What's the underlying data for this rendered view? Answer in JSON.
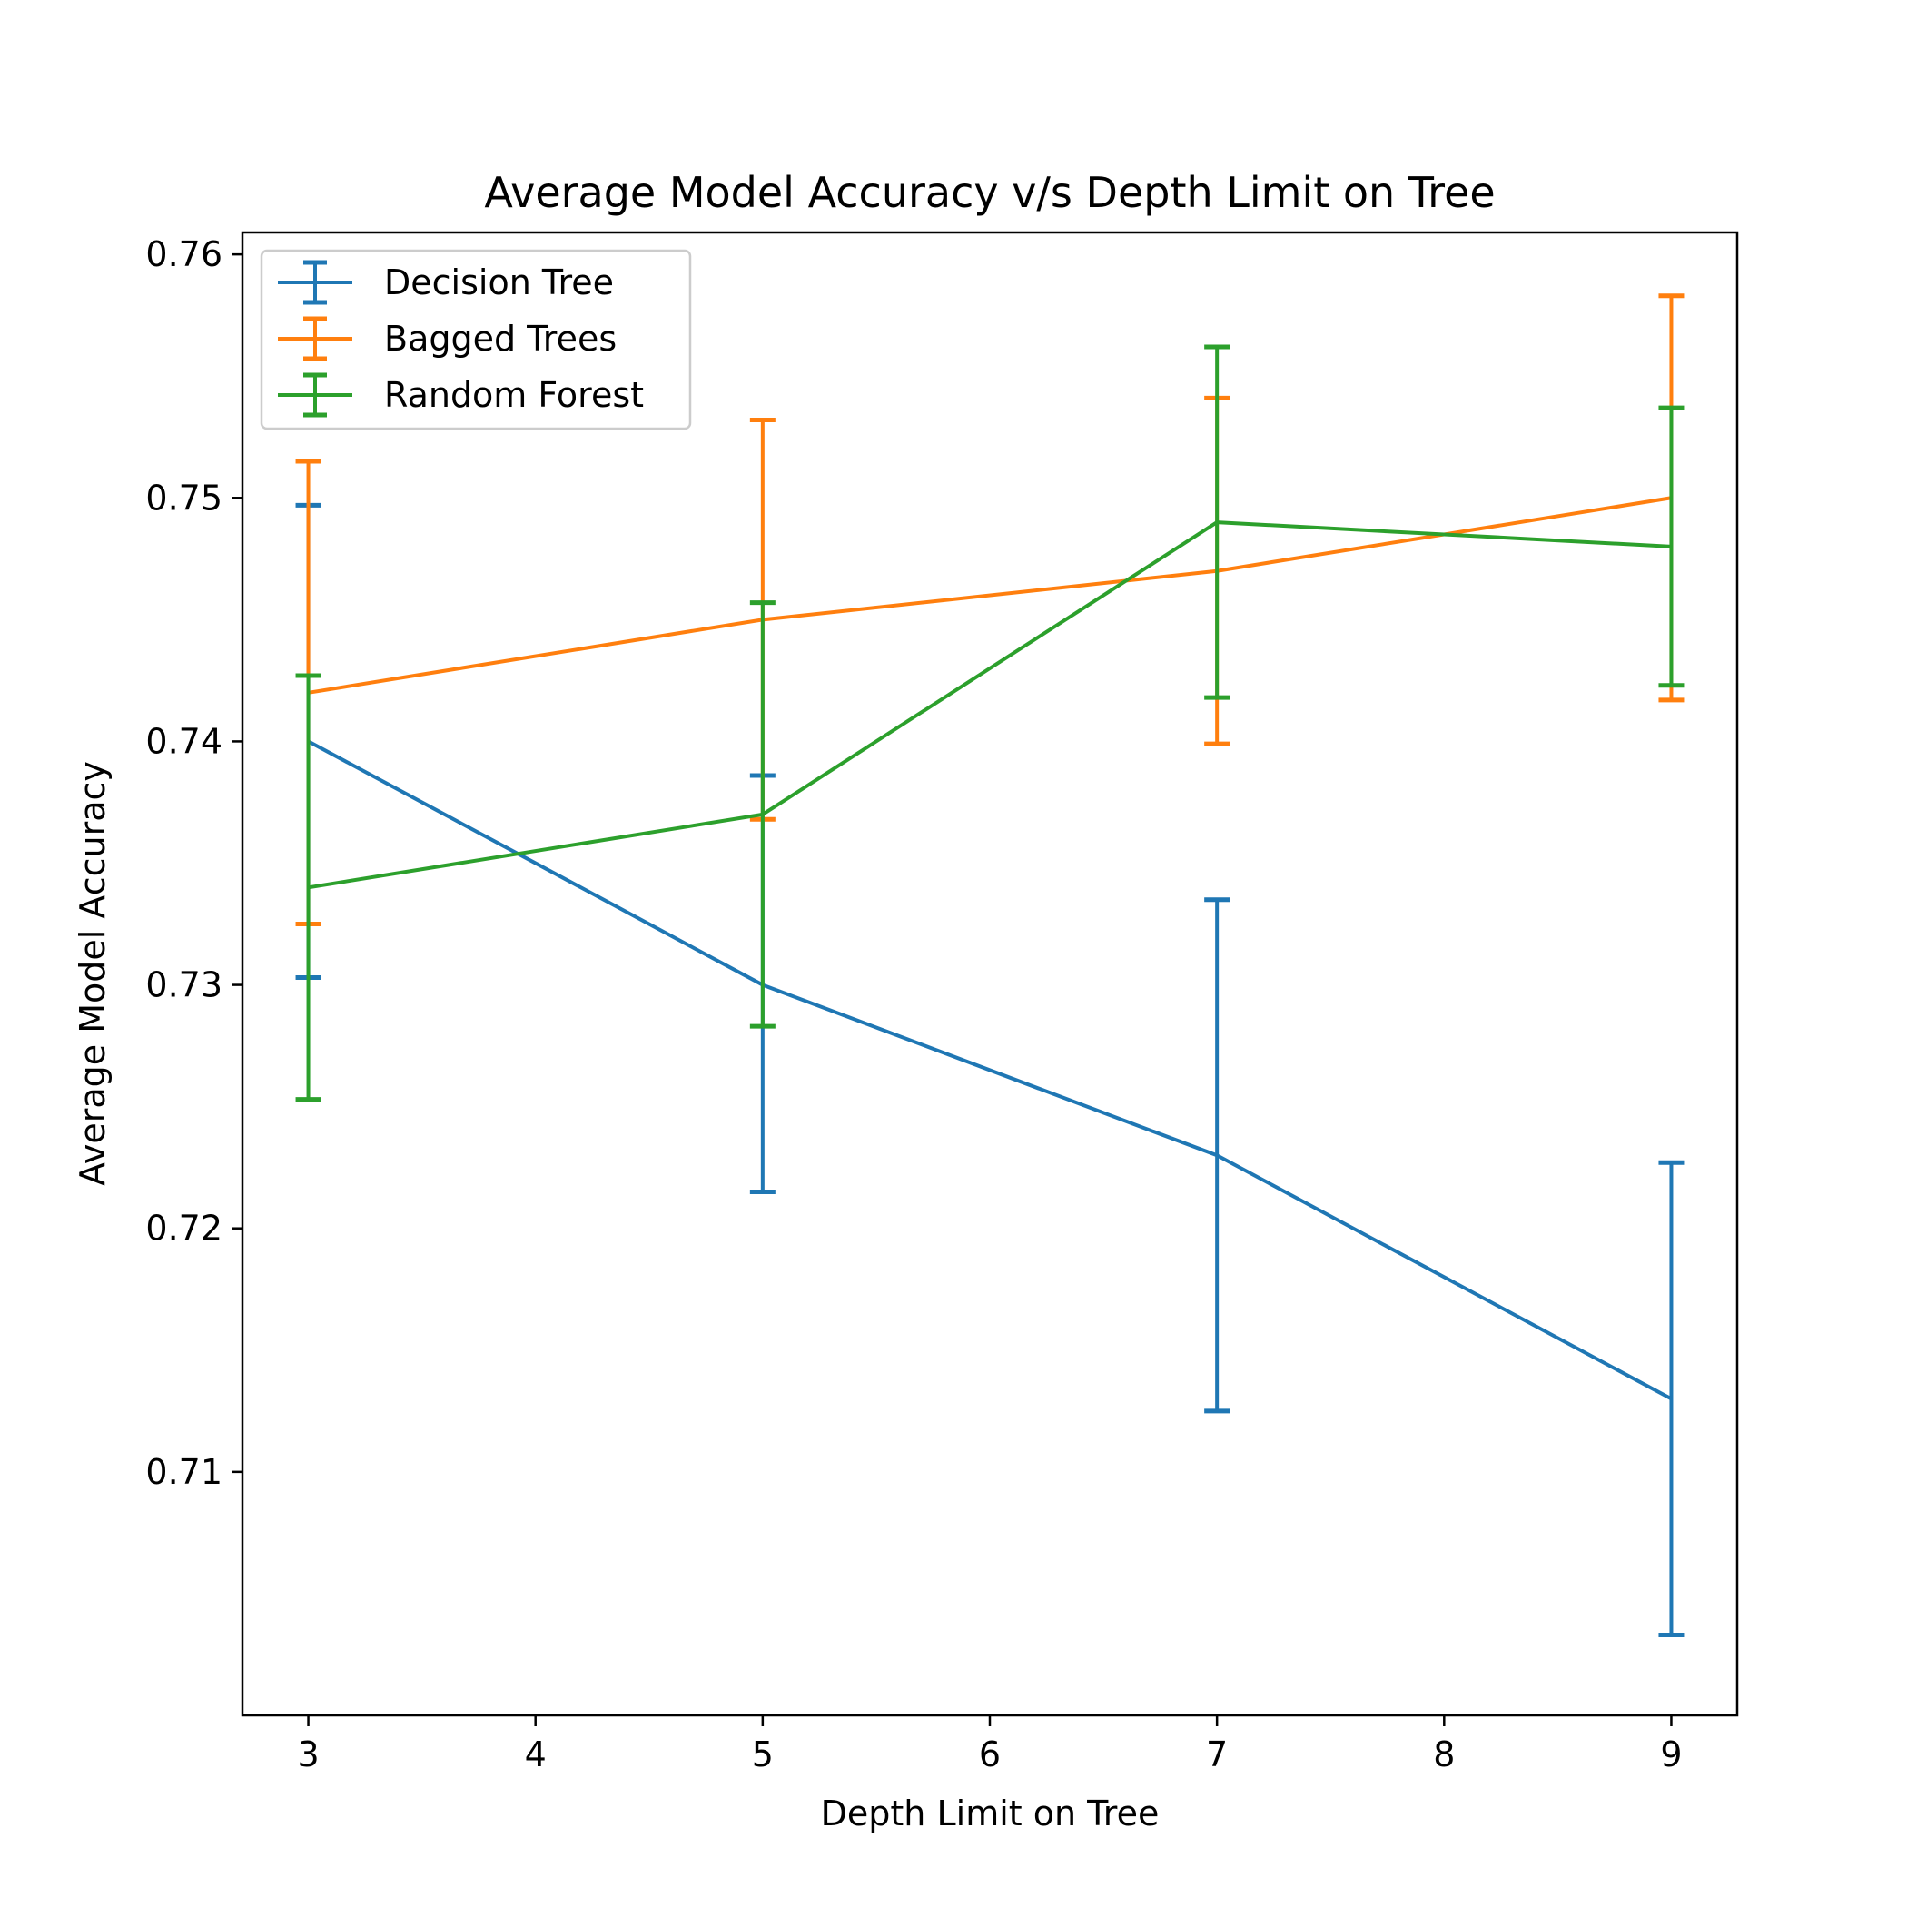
{
  "chart_data": {
    "type": "line",
    "title": "Average Model Accuracy v/s Depth Limit on Tree",
    "xlabel": "Depth Limit on Tree",
    "ylabel": "Average Model Accuracy",
    "x": [
      3,
      5,
      7,
      9
    ],
    "xlim": [
      2.71,
      9.29
    ],
    "ylim": [
      0.7,
      0.7609
    ],
    "xticks": [
      3,
      4,
      5,
      6,
      7,
      8,
      9
    ],
    "xtick_labels": [
      "3",
      "4",
      "5",
      "6",
      "7",
      "8",
      "9"
    ],
    "yticks": [
      0.71,
      0.72,
      0.73,
      0.74,
      0.75,
      0.76
    ],
    "ytick_labels": [
      "0.71",
      "0.72",
      "0.73",
      "0.74",
      "0.75",
      "0.76"
    ],
    "grid": false,
    "legend": "upper-left",
    "series": [
      {
        "name": "Decision Tree",
        "color": "#1f77b4",
        "values": [
          0.74,
          0.73,
          0.723,
          0.713
        ],
        "err_low": [
          0.7303,
          0.7215,
          0.7125,
          0.7033
        ],
        "err_high": [
          0.7497,
          0.7386,
          0.7335,
          0.7227
        ]
      },
      {
        "name": "Bagged Trees",
        "color": "#ff7f0e",
        "values": [
          0.742,
          0.745,
          0.747,
          0.75
        ],
        "err_low": [
          0.7325,
          0.7368,
          0.7399,
          0.7417
        ],
        "err_high": [
          0.7515,
          0.7532,
          0.7541,
          0.7583
        ]
      },
      {
        "name": "Random Forest",
        "color": "#2ca02c",
        "values": [
          0.734,
          0.737,
          0.749,
          0.748
        ],
        "err_low": [
          0.7253,
          0.7283,
          0.7418,
          0.7423
        ],
        "err_high": [
          0.7427,
          0.7457,
          0.7562,
          0.7537
        ]
      }
    ]
  }
}
